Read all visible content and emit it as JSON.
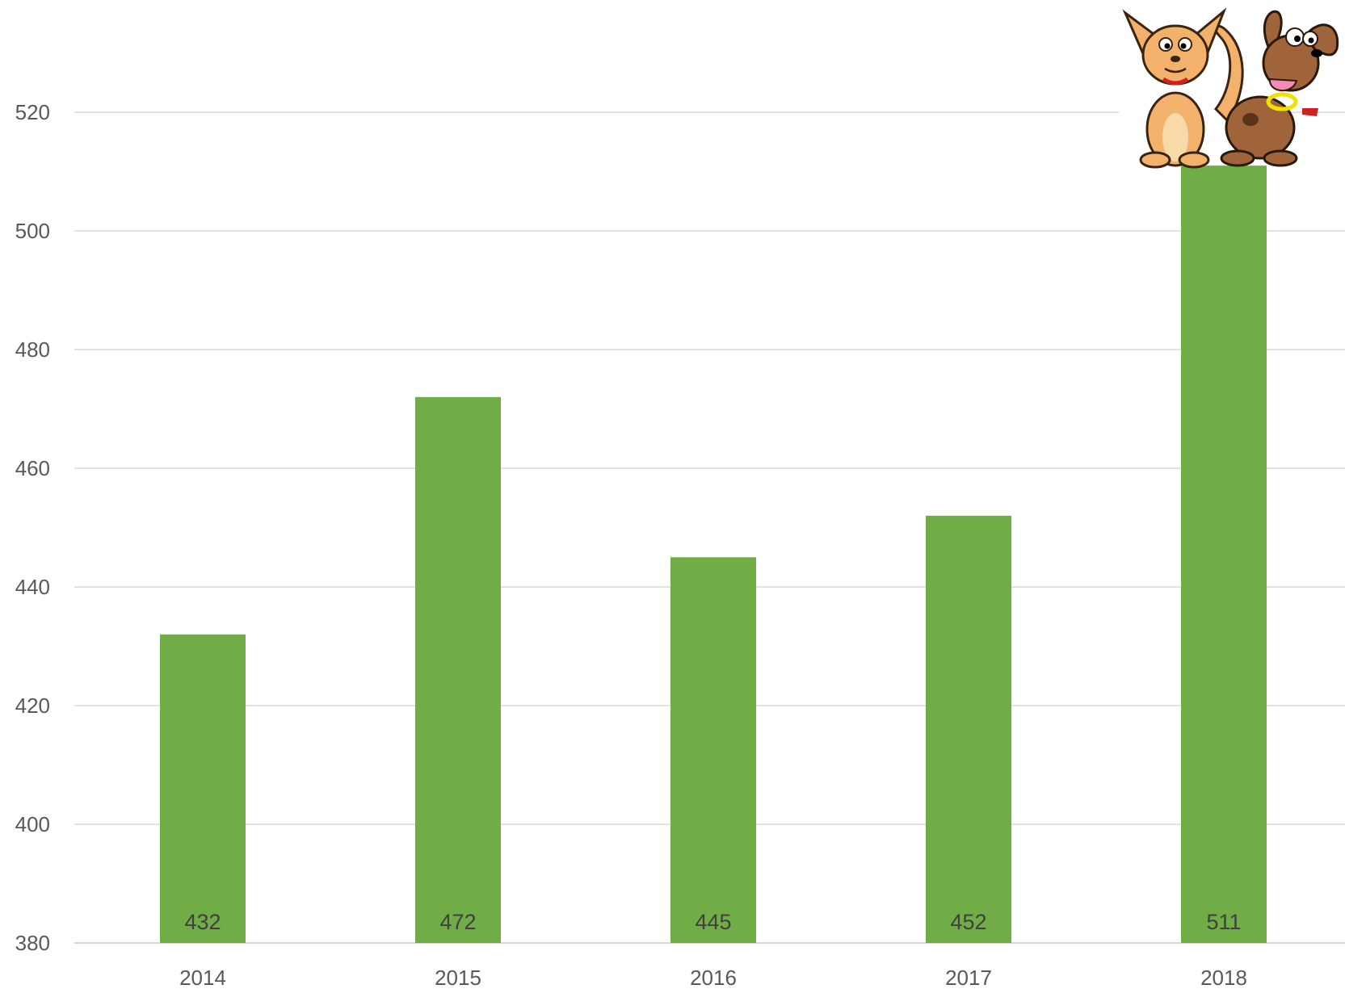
{
  "chart_data": {
    "type": "bar",
    "title": "",
    "xlabel": "",
    "ylabel": "",
    "categories": [
      "2014",
      "2015",
      "2016",
      "2017",
      "2018"
    ],
    "values": [
      432,
      472,
      445,
      452,
      511
    ],
    "data_labels": [
      "432",
      "472",
      "445",
      "452",
      "511"
    ],
    "y_ticks": [
      "380",
      "400",
      "420",
      "440",
      "460",
      "480",
      "500",
      "520"
    ],
    "ylim": [
      380,
      531
    ],
    "grid": true,
    "legend": "none",
    "bar_color": "#70AD47",
    "decoration": "cartoon cat and dog sitting on top of the 2018 bar"
  }
}
